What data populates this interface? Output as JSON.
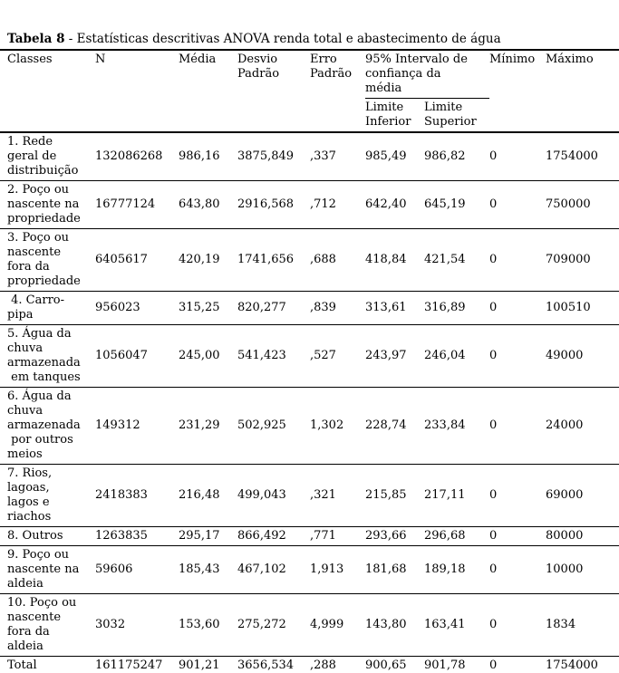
{
  "colors": {
    "text": "#000000",
    "background": "#ffffff",
    "rule": "#000000"
  },
  "title": {
    "bold": "Tabela 8",
    "text": " - Estatísticas descritivas ANOVA renda total e abastecimento de água"
  },
  "table": {
    "columns": [
      "classes",
      "n",
      "media",
      "desvio_padrao",
      "erro_padrao",
      "limite_inferior",
      "limite_superior",
      "minimo",
      "maximo"
    ],
    "headers": {
      "classes": "Classes",
      "n": "N",
      "media": "Média",
      "desvio_padrao": "Desvio\nPadrão",
      "erro_padrao": "Erro\nPadrão",
      "ci_group": "95% Intervalo de\nconfiança da\nmédia",
      "limite_inferior": "Limite\nInferior",
      "limite_superior": "Limite\nSuperior",
      "minimo": "Mínimo",
      "maximo": "Máximo"
    },
    "rows": [
      {
        "classes": "1. Rede\ngeral de\ndistribuição",
        "n": "132086268",
        "media": "986,16",
        "desvio_padrao": "3875,849",
        "erro_padrao": ",337",
        "limite_inferior": "985,49",
        "limite_superior": "986,82",
        "minimo": "0",
        "maximo": "1754000"
      },
      {
        "classes": "2. Poço ou\nnascente na\npropriedade",
        "n": "16777124",
        "media": "643,80",
        "desvio_padrao": "2916,568",
        "erro_padrao": ",712",
        "limite_inferior": "642,40",
        "limite_superior": "645,19",
        "minimo": "0",
        "maximo": "750000"
      },
      {
        "classes": "3. Poço ou\nnascente\nfora da\npropriedade",
        "n": "6405617",
        "media": "420,19",
        "desvio_padrao": "1741,656",
        "erro_padrao": ",688",
        "limite_inferior": "418,84",
        "limite_superior": "421,54",
        "minimo": "0",
        "maximo": "709000"
      },
      {
        "classes": " 4. Carro-\npipa",
        "n": "956023",
        "media": "315,25",
        "desvio_padrao": "820,277",
        "erro_padrao": ",839",
        "limite_inferior": "313,61",
        "limite_superior": "316,89",
        "minimo": "0",
        "maximo": "100510"
      },
      {
        "classes": "5. Água da\nchuva\narmazenada\n em tanques",
        "n": "1056047",
        "media": "245,00",
        "desvio_padrao": "541,423",
        "erro_padrao": ",527",
        "limite_inferior": "243,97",
        "limite_superior": "246,04",
        "minimo": "0",
        "maximo": "49000"
      },
      {
        "classes": "6. Água da\nchuva\narmazenada\n por outros\nmeios",
        "n": "149312",
        "media": "231,29",
        "desvio_padrao": "502,925",
        "erro_padrao": "1,302",
        "limite_inferior": "228,74",
        "limite_superior": "233,84",
        "minimo": "0",
        "maximo": "24000"
      },
      {
        "classes": "7. Rios,\nlagoas,\nlagos e\nriachos",
        "n": "2418383",
        "media": "216,48",
        "desvio_padrao": "499,043",
        "erro_padrao": ",321",
        "limite_inferior": "215,85",
        "limite_superior": "217,11",
        "minimo": "0",
        "maximo": "69000"
      },
      {
        "classes": "8. Outros",
        "n": "1263835",
        "media": "295,17",
        "desvio_padrao": "866,492",
        "erro_padrao": ",771",
        "limite_inferior": "293,66",
        "limite_superior": "296,68",
        "minimo": "0",
        "maximo": "80000"
      },
      {
        "classes": "9. Poço ou\nnascente na\naldeia",
        "n": "59606",
        "media": "185,43",
        "desvio_padrao": "467,102",
        "erro_padrao": "1,913",
        "limite_inferior": "181,68",
        "limite_superior": "189,18",
        "minimo": "0",
        "maximo": "10000"
      },
      {
        "classes": "10. Poço ou\nnascente\nfora da\naldeia",
        "n": "3032",
        "media": "153,60",
        "desvio_padrao": "275,272",
        "erro_padrao": "4,999",
        "limite_inferior": "143,80",
        "limite_superior": "163,41",
        "minimo": "0",
        "maximo": "1834"
      },
      {
        "classes": "Total",
        "n": "161175247",
        "media": "901,21",
        "desvio_padrao": "3656,534",
        "erro_padrao": ",288",
        "limite_inferior": "900,65",
        "limite_superior": "901,78",
        "minimo": "0",
        "maximo": "1754000"
      }
    ]
  }
}
